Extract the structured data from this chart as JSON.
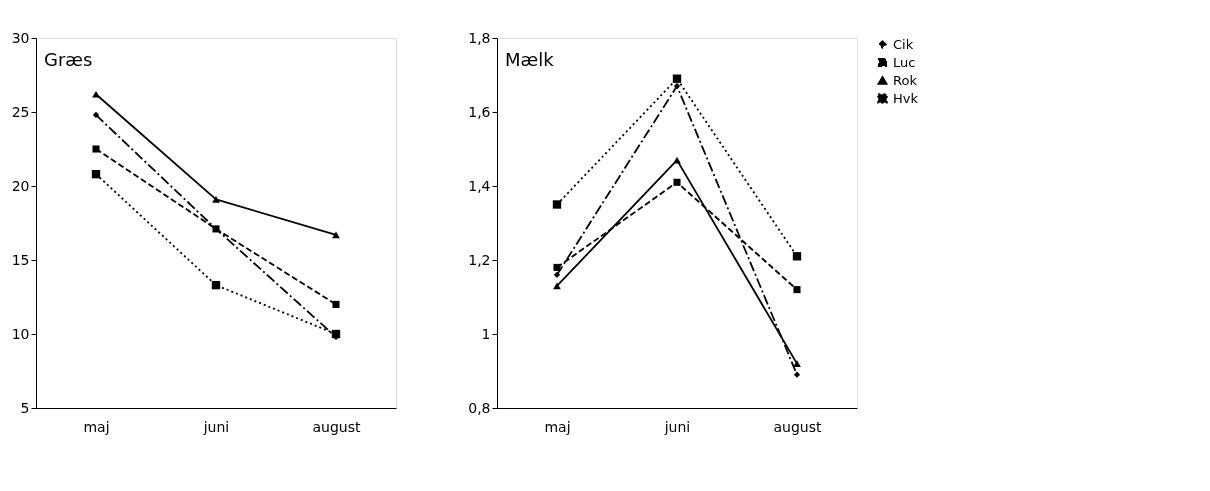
{
  "chart_data": [
    {
      "type": "line",
      "title": "Græs",
      "categories": [
        "maj",
        "juni",
        "august"
      ],
      "ylim": [
        5,
        30
      ],
      "yticks": [
        5,
        10,
        15,
        20,
        25,
        30
      ],
      "grid": false,
      "legend": "right",
      "series": [
        {
          "name": "Cik",
          "color": "#000000",
          "marker": "diamond",
          "line_style": "dashdot",
          "values": [
            24.8,
            17.1,
            9.8
          ]
        },
        {
          "name": "Luc",
          "color": "#000000",
          "marker": "square",
          "line_style": "dashed",
          "values": [
            22.5,
            17.1,
            12.0
          ]
        },
        {
          "name": "Rok",
          "color": "#000000",
          "marker": "triangle",
          "line_style": "solid",
          "values": [
            26.2,
            19.1,
            16.7
          ]
        },
        {
          "name": "Hvk",
          "color": "#000000",
          "marker": "square",
          "line_style": "dotted",
          "values": [
            20.8,
            13.3,
            10.0
          ]
        }
      ]
    },
    {
      "type": "line",
      "title": "Mælk",
      "categories": [
        "maj",
        "juni",
        "august"
      ],
      "ylim": [
        0.8,
        1.8
      ],
      "yticks": [
        {
          "value": 0.8,
          "label": "0,8"
        },
        1,
        {
          "value": 1.2,
          "label": "1,2"
        },
        {
          "value": 1.4,
          "label": "1,4"
        },
        {
          "value": 1.6,
          "label": "1,6"
        },
        {
          "value": 1.8,
          "label": "1,8"
        }
      ],
      "grid": false,
      "legend": "right",
      "series": [
        {
          "name": "Cik",
          "color": "#000000",
          "marker": "diamond",
          "line_style": "dashdot",
          "values": [
            1.16,
            1.67,
            0.89
          ]
        },
        {
          "name": "Luc",
          "color": "#000000",
          "marker": "square",
          "line_style": "dashed",
          "values": [
            1.18,
            1.41,
            1.12
          ]
        },
        {
          "name": "Rok",
          "color": "#000000",
          "marker": "triangle",
          "line_style": "solid",
          "values": [
            1.13,
            1.47,
            0.92
          ]
        },
        {
          "name": "Hvk",
          "color": "#000000",
          "marker": "square",
          "line_style": "dotted",
          "values": [
            1.35,
            1.69,
            1.21
          ]
        }
      ]
    }
  ]
}
